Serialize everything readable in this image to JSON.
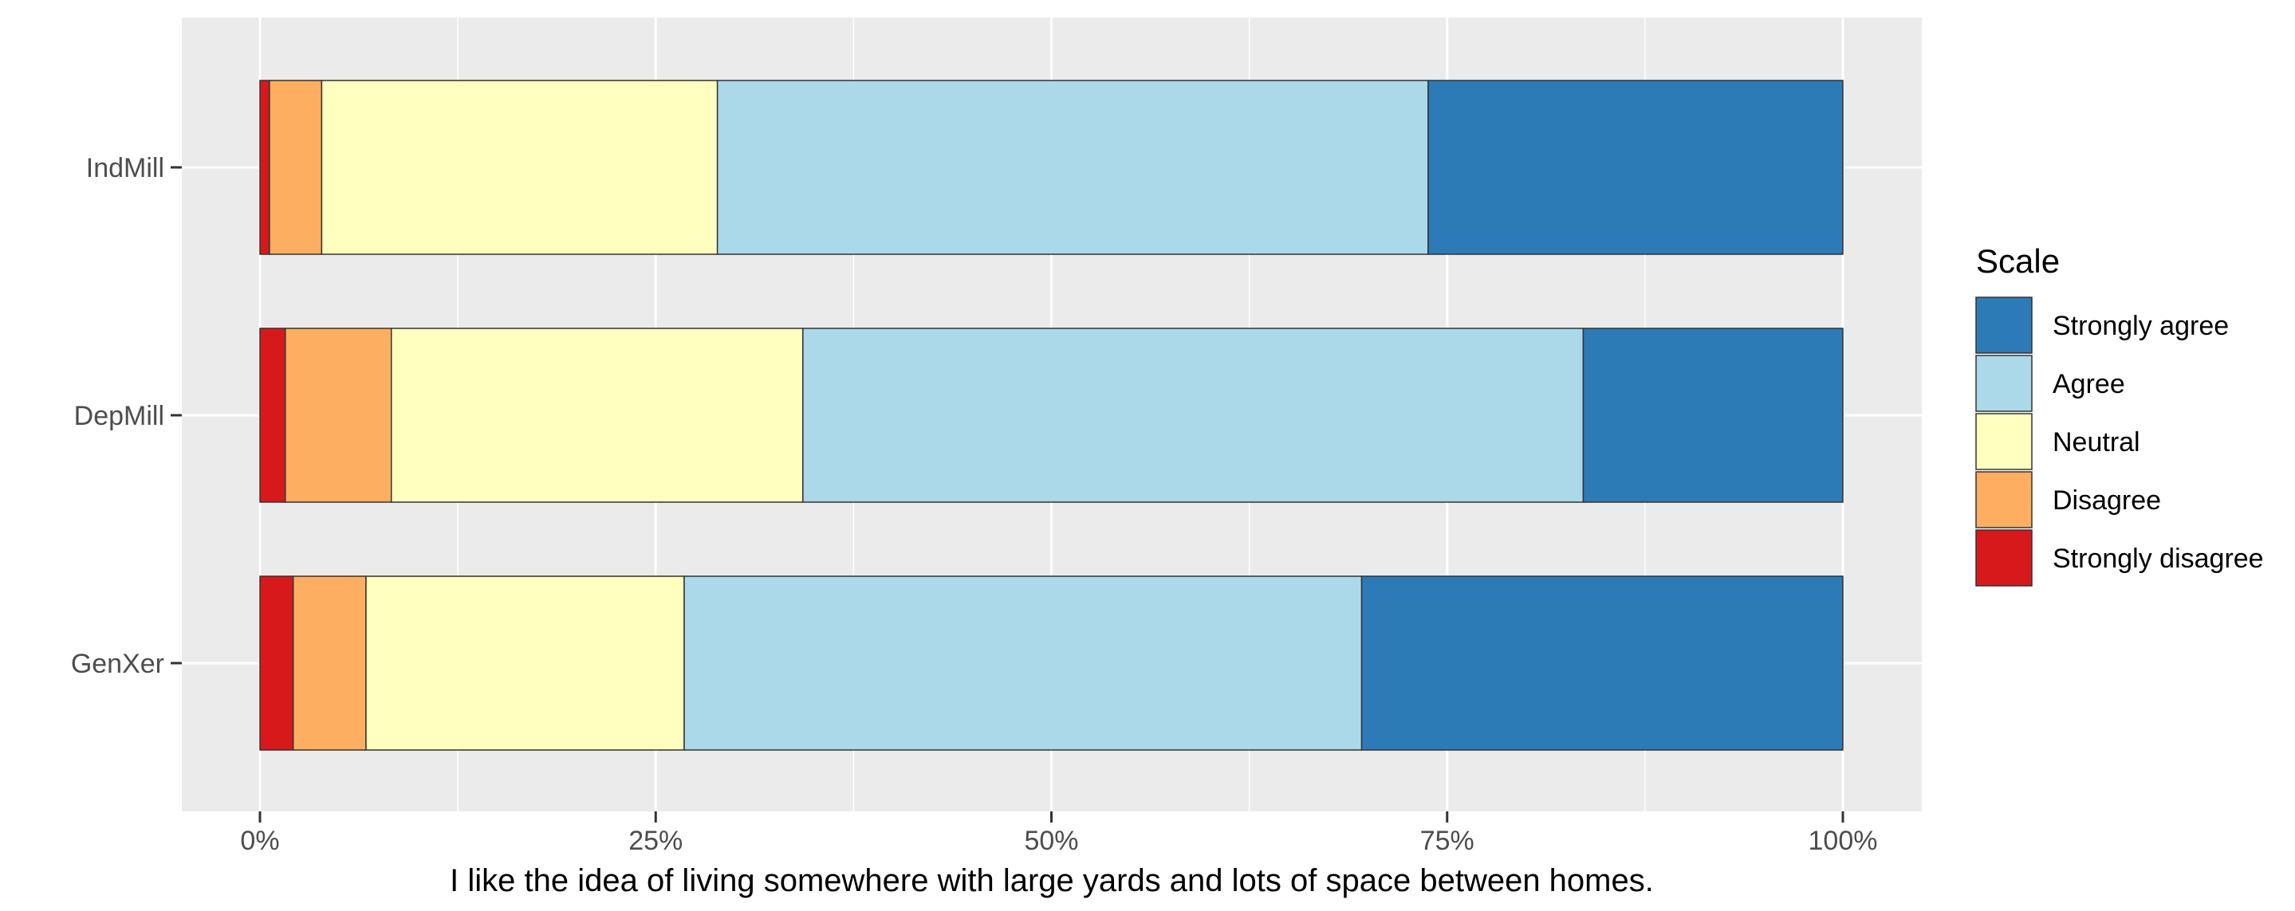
{
  "chart_data": {
    "type": "bar",
    "orientation": "horizontal",
    "stacked": true,
    "normalized": true,
    "title": "",
    "xlabel": "I like the idea of living somewhere with large yards and lots of space between homes.",
    "ylabel": "",
    "xlim": [
      0,
      1
    ],
    "x_ticks": [
      0,
      0.25,
      0.5,
      0.75,
      1.0
    ],
    "x_tick_labels": [
      "0%",
      "25%",
      "50%",
      "75%",
      "100%"
    ],
    "grid": true,
    "legend": {
      "title": "Scale",
      "position": "right",
      "order": [
        "Strongly agree",
        "Agree",
        "Neutral",
        "Disagree",
        "Strongly disagree"
      ]
    },
    "categories": [
      "IndMill",
      "DepMill",
      "GenXer"
    ],
    "series": [
      {
        "name": "Strongly disagree",
        "color": "#d7191c",
        "values": [
          0.6,
          1.6,
          2.1
        ]
      },
      {
        "name": "Disagree",
        "color": "#fdae61",
        "values": [
          3.3,
          6.7,
          4.6
        ]
      },
      {
        "name": "Neutral",
        "color": "#ffffbf",
        "values": [
          25.0,
          26.0,
          20.1
        ]
      },
      {
        "name": "Agree",
        "color": "#abd9e9",
        "values": [
          44.9,
          49.3,
          42.8
        ]
      },
      {
        "name": "Strongly agree",
        "color": "#2c7bb6",
        "values": [
          26.2,
          16.4,
          30.4
        ]
      }
    ]
  }
}
